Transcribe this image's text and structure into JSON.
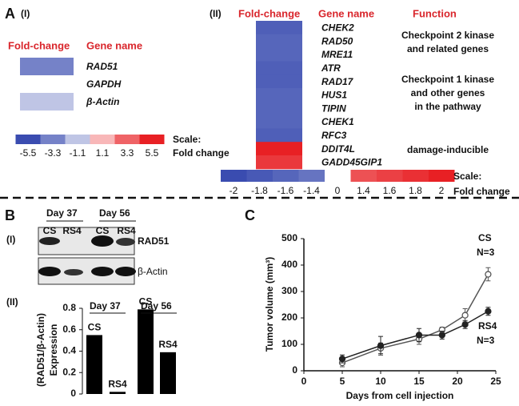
{
  "panel_a": {
    "label": "A",
    "part1": {
      "label": "(I)",
      "headers": [
        "Fold-change",
        "Gene name"
      ],
      "genes": [
        "RAD51",
        "GAPDH",
        "β-Actin"
      ],
      "fold_change": [
        -3.3,
        0,
        -1.1
      ],
      "scale_title": "Scale:",
      "scale_subtitle": "Fold change",
      "scale_ticks": [
        -5.5,
        -3.3,
        -1.1,
        1.1,
        3.3,
        5.5
      ]
    },
    "part2": {
      "label": "(II)",
      "headers": [
        "Fold-change",
        "Gene name",
        "Function"
      ],
      "genes": [
        "CHEK2",
        "RAD50",
        "MRE11",
        "ATR",
        "RAD17",
        "HUS1",
        "TIPIN",
        "CHEK1",
        "RFC3",
        "DDIT4L",
        "GADD45GIP1"
      ],
      "fold_change": [
        -1.7,
        -1.6,
        -1.6,
        -1.7,
        -1.7,
        -1.6,
        -1.6,
        -1.6,
        -1.7,
        2,
        1.7
      ],
      "functions": [
        [
          "Checkpoint 2 kinase",
          "and related genes"
        ],
        [
          "Checkpoint 1 kinase",
          "and other genes",
          "in the pathway"
        ],
        [
          "damage-inducible"
        ]
      ],
      "scale_title": "Scale:",
      "scale_subtitle": "Fold change",
      "scale_ticks": [
        -2,
        -1.8,
        -1.6,
        -1.4,
        0,
        1.4,
        1.6,
        1.8,
        2
      ]
    }
  },
  "panel_b": {
    "label": "B",
    "part1": {
      "label": "(I)",
      "groups": [
        "Day 37",
        "Day 56"
      ],
      "lanes": [
        "CS",
        "RS4",
        "CS",
        "RS4"
      ],
      "rows": [
        "RAD51",
        "β-Actin"
      ]
    },
    "part2": {
      "label": "(II)",
      "chart_data": {
        "type": "bar",
        "groups": [
          "Day 37",
          "Day 56"
        ],
        "categories": [
          "CS",
          "RS4",
          "CS",
          "RS4"
        ],
        "values": [
          0.55,
          0.02,
          0.79,
          0.39
        ],
        "color": "#000000",
        "ylabel": [
          "(RAD51/β-Actin)",
          "Expression"
        ],
        "ylim": [
          0,
          0.8
        ],
        "yticks": [
          0,
          0.2,
          0.4,
          0.6,
          0.8
        ]
      }
    }
  },
  "panel_c": {
    "label": "C",
    "chart_data": {
      "type": "line",
      "xlabel": "Days from cell injection",
      "ylabel": "Tumor volume (mm³)",
      "xlim": [
        0,
        25
      ],
      "xticks": [
        0,
        5,
        10,
        15,
        20,
        25
      ],
      "ylim": [
        0,
        500
      ],
      "yticks": [
        0,
        100,
        200,
        300,
        400,
        500
      ],
      "series": [
        {
          "name": "CS",
          "color": "#555555",
          "filled": false,
          "x": [
            5,
            10,
            15,
            18,
            21,
            24
          ],
          "values": [
            30,
            85,
            120,
            155,
            210,
            365
          ],
          "errors": [
            15,
            20,
            20,
            10,
            25,
            25
          ]
        },
        {
          "name": "RS4",
          "color": "#222222",
          "filled": true,
          "x": [
            5,
            10,
            15,
            18,
            21,
            24
          ],
          "values": [
            45,
            95,
            135,
            135,
            175,
            225
          ],
          "errors": [
            15,
            35,
            25,
            15,
            15,
            15
          ]
        }
      ],
      "annotations": [
        "N=3",
        "N=3"
      ]
    }
  }
}
